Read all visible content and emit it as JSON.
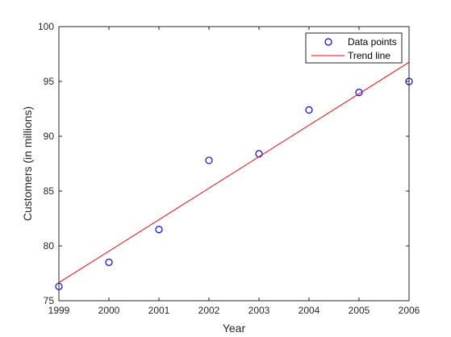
{
  "chart_data": {
    "type": "scatter",
    "title": "",
    "xlabel": "Year",
    "ylabel": "Customers (in millions)",
    "xlim": [
      1999,
      2006
    ],
    "ylim": [
      75,
      100
    ],
    "xticks": [
      1999,
      2000,
      2001,
      2002,
      2003,
      2004,
      2005,
      2006
    ],
    "yticks": [
      75,
      80,
      85,
      90,
      95,
      100
    ],
    "grid": false,
    "legend_placement": "top-right",
    "series": [
      {
        "name": "Data points",
        "kind": "marker",
        "marker": "circle",
        "color": "#0000ff",
        "x": [
          1999,
          2000,
          2001,
          2002,
          2003,
          2004,
          2005,
          2006
        ],
        "y": [
          76.3,
          78.5,
          81.5,
          87.8,
          88.4,
          92.4,
          94.0,
          95.0
        ]
      },
      {
        "name": "Trend line",
        "kind": "line",
        "color": "#ff0000",
        "x": [
          1999,
          2006
        ],
        "y": [
          76.65,
          96.75
        ]
      }
    ]
  }
}
